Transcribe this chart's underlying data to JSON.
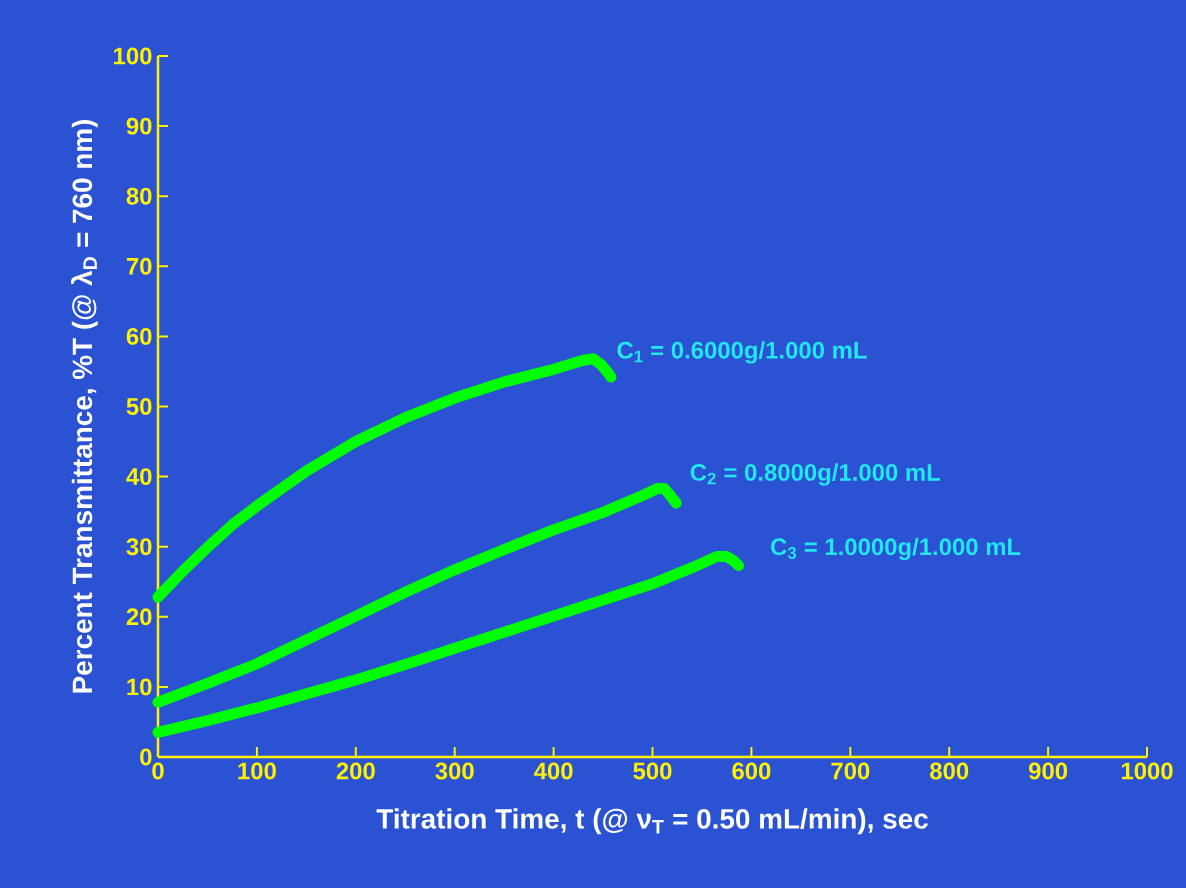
{
  "chart_data": {
    "type": "line",
    "xlabel": "Titration Time, t (@ ν$_{T}$ = 0.50 mL/min), sec",
    "ylabel": "Percent Transmittance, %T (@ λ$_{D}$ = 760 nm)",
    "xlim": [
      0,
      1000
    ],
    "ylim": [
      0,
      100
    ],
    "xticks": [
      0,
      100,
      200,
      300,
      400,
      500,
      600,
      700,
      800,
      900,
      1000
    ],
    "yticks": [
      0,
      10,
      20,
      30,
      40,
      50,
      60,
      70,
      80,
      90,
      100
    ],
    "grid": false,
    "legend": false,
    "line_style": "solid",
    "series": [
      {
        "name": "C$_{1}$ = 0.6000g/1.000 mL",
        "color": "#00ff00",
        "x": [
          0,
          25,
          50,
          75,
          100,
          150,
          200,
          250,
          300,
          350,
          400,
          430,
          440,
          448,
          455,
          458
        ],
        "values": [
          22.8,
          26.5,
          29.9,
          33.1,
          35.8,
          40.8,
          45.0,
          48.4,
          51.2,
          53.5,
          55.3,
          56.6,
          56.8,
          56.0,
          54.8,
          54.2
        ]
      },
      {
        "name": "C$_{2}$ = 0.8000g/1.000 mL",
        "color": "#00ff00",
        "x": [
          0,
          50,
          100,
          150,
          200,
          250,
          300,
          350,
          400,
          450,
          490,
          505,
          512,
          518,
          524
        ],
        "values": [
          7.8,
          10.5,
          13.3,
          16.7,
          20.1,
          23.5,
          26.7,
          29.6,
          32.4,
          34.9,
          37.3,
          38.3,
          38.3,
          37.3,
          36.2
        ]
      },
      {
        "name": "C$_{3}$ = 1.0000g/1.000 mL",
        "color": "#00ff00",
        "x": [
          0,
          50,
          100,
          150,
          200,
          250,
          300,
          350,
          400,
          450,
          500,
          540,
          565,
          575,
          582,
          587
        ],
        "values": [
          3.5,
          5.2,
          7.0,
          9.0,
          11.0,
          13.2,
          15.5,
          17.8,
          20.1,
          22.4,
          24.7,
          27.0,
          28.6,
          28.6,
          28.0,
          27.3
        ]
      }
    ]
  }
}
